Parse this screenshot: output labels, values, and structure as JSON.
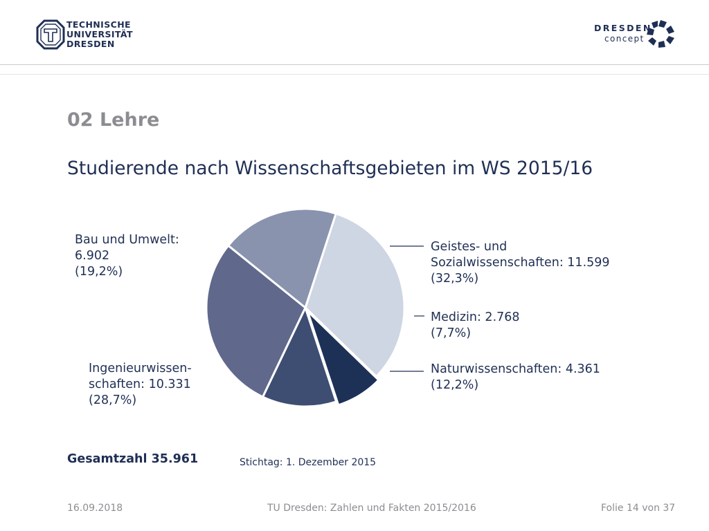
{
  "header": {
    "university_lines": [
      "TECHNISCHE",
      "UNIVERSITÄT",
      "DRESDEN"
    ],
    "concept_word1": "DRESDEN",
    "concept_word2": "concept"
  },
  "section_title": "02 Lehre",
  "title": "Studierende nach Wissenschaftsgebieten im WS 2015/16",
  "chart_data": {
    "type": "pie",
    "title": "Studierende nach Wissenschaftsgebieten im WS 2015/16",
    "slices": [
      {
        "label": "Geistes- und Sozialwissenschaften",
        "value": 11599,
        "percent": 32.3,
        "color": "#ced5e3",
        "text": "Geistes- und\nSozialwissenschaften: 11.599\n(32,3%)"
      },
      {
        "label": "Medizin",
        "value": 2768,
        "percent": 7.7,
        "color": "#1d3157",
        "text": "Medizin: 2.768\n(7,7%)"
      },
      {
        "label": "Naturwissenschaften",
        "value": 4361,
        "percent": 12.2,
        "color": "#3e4d72",
        "text": "Naturwissenschaften: 4.361\n(12,2%)"
      },
      {
        "label": "Ingenieurwissenschaften",
        "value": 10331,
        "percent": 28.7,
        "color": "#60698c",
        "text": "Ingenieurwissen-\nschaften: 10.331\n(28,7%)"
      },
      {
        "label": "Bau und Umwelt",
        "value": 6902,
        "percent": 19.2,
        "color": "#8993ae",
        "text": "Bau und Umwelt:\n6.902\n(19,2%)"
      }
    ]
  },
  "total": "Gesamtzahl 35.961",
  "stichtag": "Stichtag: 1. Dezember 2015",
  "footer": {
    "date": "16.09.2018",
    "center": "TU Dresden: Zahlen und Fakten 2015/2016",
    "page": "Folie 14 von 37"
  }
}
